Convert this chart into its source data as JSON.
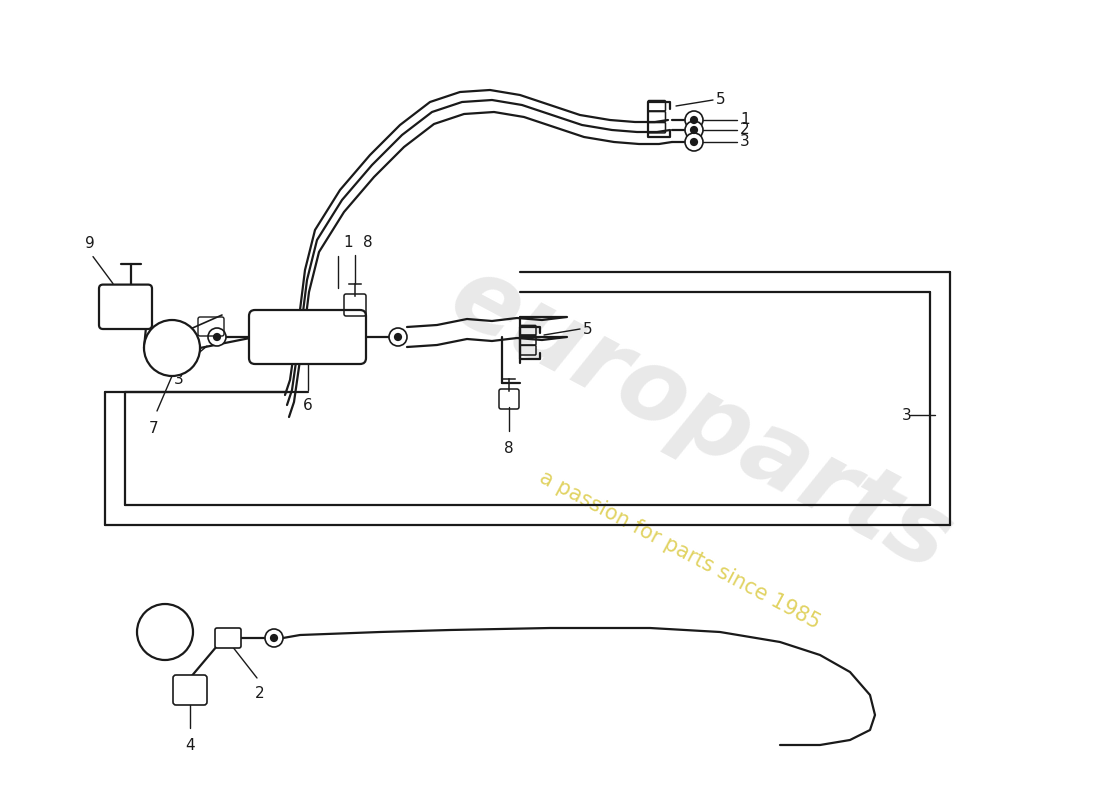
{
  "bg_color": "#ffffff",
  "line_color": "#1a1a1a",
  "watermark_main_color": "#c8c8c8",
  "watermark_main_alpha": 0.4,
  "watermark_sub_color": "#d4c020",
  "watermark_sub_alpha": 0.7,
  "label_fontsize": 11,
  "lw_med": 1.6,
  "lw_thin": 1.0,
  "lw_thick": 2.0
}
